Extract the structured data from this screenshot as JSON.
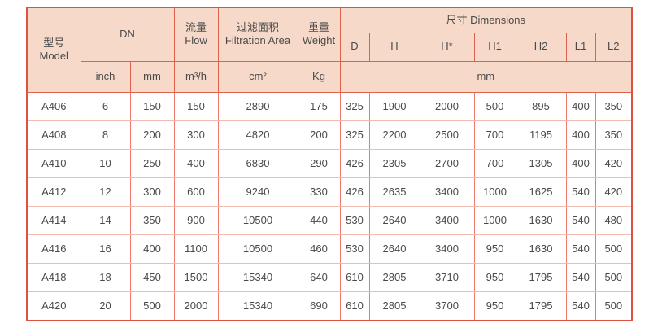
{
  "table": {
    "header": {
      "model": {
        "zh": "型号",
        "en": "Model"
      },
      "dn": "DN",
      "flow": {
        "zh": "流量",
        "en": "Flow"
      },
      "filtration": {
        "zh": "过滤面积",
        "en": "Filtration Area"
      },
      "weight": {
        "zh": "重量",
        "en": "Weight"
      },
      "dimensions": "尺寸 Dimensions",
      "dim_cols": [
        "D",
        "H",
        "H*",
        "H1",
        "H2",
        "L1",
        "L2"
      ],
      "units": {
        "inch": "inch",
        "mm": "mm",
        "flow": "m³/h",
        "area": "cm²",
        "weight": "Kg",
        "dims": "mm"
      }
    },
    "rows": [
      {
        "model": "A406",
        "values": [
          "6",
          "150",
          "150",
          "2890",
          "175",
          "325",
          "1900",
          "2000",
          "500",
          "895",
          "400",
          "350"
        ]
      },
      {
        "model": "A408",
        "values": [
          "8",
          "200",
          "300",
          "4820",
          "200",
          "325",
          "2200",
          "2500",
          "700",
          "1195",
          "400",
          "350"
        ]
      },
      {
        "model": "A410",
        "values": [
          "10",
          "250",
          "400",
          "6830",
          "290",
          "426",
          "2305",
          "2700",
          "700",
          "1305",
          "400",
          "420"
        ]
      },
      {
        "model": "A412",
        "values": [
          "12",
          "300",
          "600",
          "9240",
          "330",
          "426",
          "2635",
          "3400",
          "1000",
          "1625",
          "540",
          "420"
        ]
      },
      {
        "model": "A414",
        "values": [
          "14",
          "350",
          "900",
          "10500",
          "440",
          "530",
          "2640",
          "3400",
          "1000",
          "1630",
          "540",
          "480"
        ]
      },
      {
        "model": "A416",
        "values": [
          "16",
          "400",
          "1100",
          "10500",
          "460",
          "530",
          "2640",
          "3400",
          "950",
          "1630",
          "540",
          "500"
        ]
      },
      {
        "model": "A418",
        "values": [
          "18",
          "450",
          "1500",
          "15340",
          "640",
          "610",
          "2805",
          "3710",
          "950",
          "1795",
          "540",
          "500"
        ]
      },
      {
        "model": "A420",
        "values": [
          "20",
          "500",
          "2000",
          "15340",
          "690",
          "610",
          "2805",
          "3700",
          "950",
          "1795",
          "540",
          "500"
        ]
      }
    ]
  },
  "colors": {
    "header_bg": "#f6d9c8",
    "border_strong": "#dd5342",
    "border_header": "#e0614c",
    "border_vertical": "#ec796c",
    "border_horizontal": "#f4bab1",
    "text": "#4a4a4a"
  }
}
